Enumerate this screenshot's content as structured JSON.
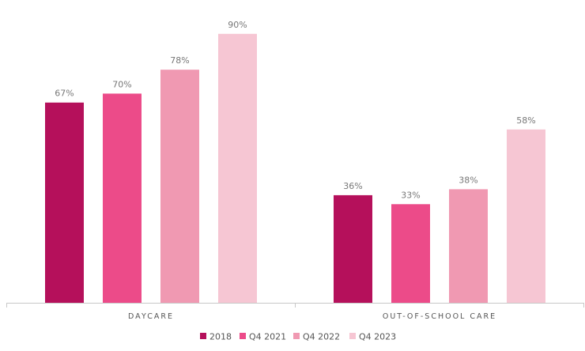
{
  "chart_data": {
    "type": "bar",
    "categories": [
      "DAYCARE",
      "OUT-OF-SCHOOL CARE"
    ],
    "series": [
      {
        "name": "2018",
        "values": [
          67,
          36
        ],
        "color": "#b5105b"
      },
      {
        "name": "Q4 2021",
        "values": [
          70,
          33
        ],
        "color": "#ec4b89"
      },
      {
        "name": "Q4 2022",
        "values": [
          78,
          38
        ],
        "color": "#f099b2"
      },
      {
        "name": "Q4 2023",
        "values": [
          90,
          58
        ],
        "color": "#f6c6d3"
      }
    ],
    "value_suffix": "%",
    "ylim": [
      0,
      100
    ],
    "grid": false,
    "legend_position": "bottom",
    "colors": {
      "axis": "#c8c8c8",
      "value_text": "#777777",
      "category_text": "#555555"
    }
  }
}
